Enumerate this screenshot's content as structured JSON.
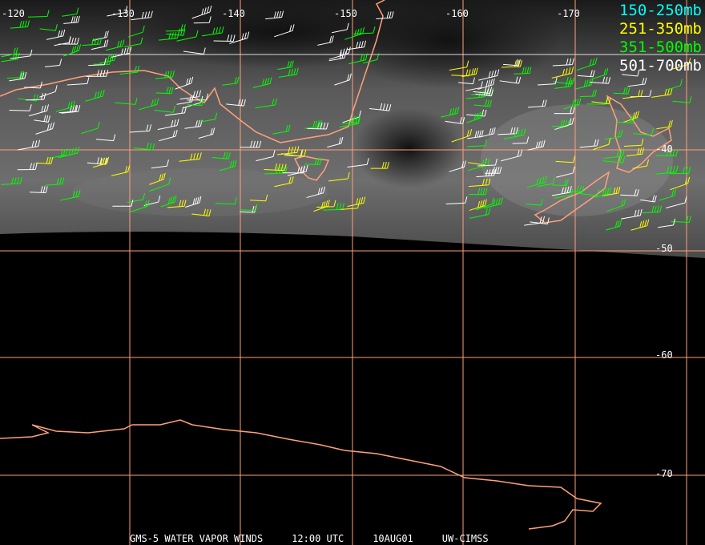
{
  "map": {
    "caption": {
      "product": "GMS-5 WATER VAPOR WINDS",
      "time": "12:00 UTC",
      "date": "10AUG01",
      "source": "UW-CIMSS"
    },
    "longitude_labels": [
      "-120",
      "-130",
      "-140",
      "-150",
      "-160",
      "-170"
    ],
    "latitude_labels": [
      "-40",
      "-50",
      "-60",
      "-70"
    ],
    "legend": [
      {
        "label": "150-250mb",
        "color": "#00ffff"
      },
      {
        "label": "251-350mb",
        "color": "#ffff00"
      },
      {
        "label": "351-500mb",
        "color": "#00ff00"
      },
      {
        "label": "501-700mb",
        "color": "#ffffff"
      }
    ],
    "colors": {
      "grid": "#ffa07a",
      "coastline": "#ffa07a",
      "background": "#000000"
    }
  }
}
